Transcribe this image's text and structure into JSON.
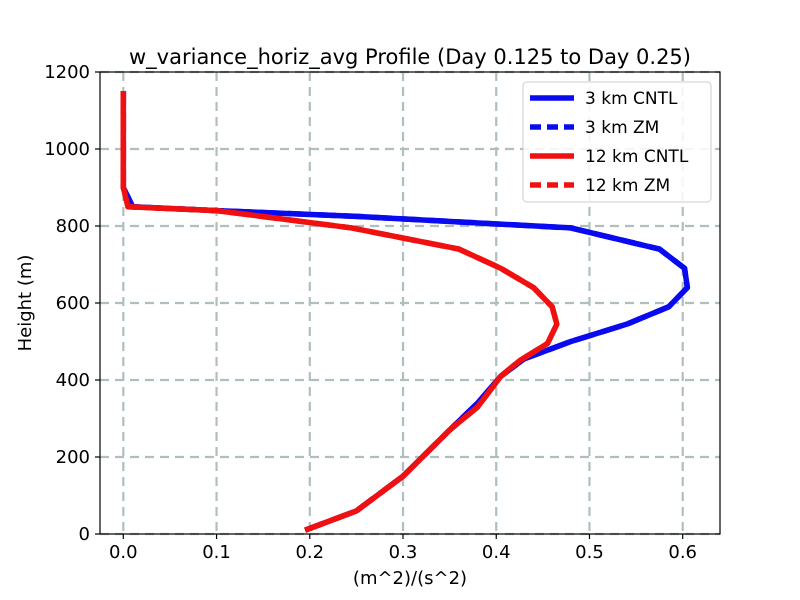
{
  "chart_data": {
    "type": "line",
    "title": "w_variance_horiz_avg Profile (Day 0.125 to Day 0.25)",
    "xlabel": "(m^2)/(s^2)",
    "ylabel": "Height (m)",
    "xlim": [
      -0.025,
      0.64
    ],
    "ylim": [
      0,
      1200
    ],
    "xticks": [
      0.0,
      0.1,
      0.2,
      0.3,
      0.4,
      0.5,
      0.6
    ],
    "xtick_labels": [
      "0.0",
      "0.1",
      "0.2",
      "0.3",
      "0.4",
      "0.5",
      "0.6"
    ],
    "yticks": [
      0,
      200,
      400,
      600,
      800,
      1000,
      1200
    ],
    "ytick_labels": [
      "0",
      "200",
      "400",
      "600",
      "800",
      "1000",
      "1200"
    ],
    "grid": true,
    "legend_position": "top-right",
    "series": [
      {
        "name": "3 km CNTL",
        "color": "#0a0af0",
        "style": "solid",
        "points": [
          [
            0.195,
            10
          ],
          [
            0.25,
            60
          ],
          [
            0.3,
            150
          ],
          [
            0.35,
            270
          ],
          [
            0.38,
            340
          ],
          [
            0.405,
            410
          ],
          [
            0.43,
            455
          ],
          [
            0.48,
            500
          ],
          [
            0.54,
            545
          ],
          [
            0.585,
            590
          ],
          [
            0.605,
            640
          ],
          [
            0.602,
            690
          ],
          [
            0.575,
            740
          ],
          [
            0.48,
            795
          ],
          [
            0.25,
            825
          ],
          [
            0.1,
            840
          ],
          [
            0.01,
            850
          ],
          [
            0.0,
            900
          ],
          [
            0.0,
            1000
          ],
          [
            0.0,
            1150
          ]
        ]
      },
      {
        "name": "3 km ZM",
        "color": "#0a0af0",
        "style": "dashed",
        "points": [
          [
            0.195,
            10
          ],
          [
            0.25,
            60
          ],
          [
            0.3,
            150
          ],
          [
            0.35,
            270
          ],
          [
            0.38,
            340
          ],
          [
            0.405,
            410
          ],
          [
            0.43,
            455
          ],
          [
            0.48,
            500
          ],
          [
            0.54,
            545
          ],
          [
            0.585,
            590
          ],
          [
            0.605,
            640
          ],
          [
            0.602,
            690
          ],
          [
            0.575,
            740
          ],
          [
            0.48,
            795
          ],
          [
            0.25,
            825
          ],
          [
            0.1,
            840
          ],
          [
            0.01,
            850
          ],
          [
            0.0,
            900
          ],
          [
            0.0,
            1000
          ],
          [
            0.0,
            1150
          ]
        ]
      },
      {
        "name": "12 km CNTL",
        "color": "#f01010",
        "style": "solid",
        "points": [
          [
            0.195,
            10
          ],
          [
            0.25,
            60
          ],
          [
            0.3,
            150
          ],
          [
            0.35,
            270
          ],
          [
            0.38,
            330
          ],
          [
            0.405,
            410
          ],
          [
            0.425,
            450
          ],
          [
            0.455,
            495
          ],
          [
            0.465,
            545
          ],
          [
            0.46,
            590
          ],
          [
            0.44,
            640
          ],
          [
            0.405,
            690
          ],
          [
            0.36,
            740
          ],
          [
            0.245,
            795
          ],
          [
            0.1,
            840
          ],
          [
            0.005,
            850
          ],
          [
            0.0,
            900
          ],
          [
            0.0,
            1000
          ],
          [
            0.0,
            1150
          ]
        ]
      },
      {
        "name": "12 km ZM",
        "color": "#f01010",
        "style": "dashed",
        "points": [
          [
            0.195,
            10
          ],
          [
            0.25,
            60
          ],
          [
            0.3,
            150
          ],
          [
            0.35,
            270
          ],
          [
            0.38,
            330
          ],
          [
            0.405,
            410
          ],
          [
            0.425,
            450
          ],
          [
            0.455,
            495
          ],
          [
            0.465,
            545
          ],
          [
            0.46,
            590
          ],
          [
            0.44,
            640
          ],
          [
            0.405,
            690
          ],
          [
            0.36,
            740
          ],
          [
            0.245,
            795
          ],
          [
            0.1,
            840
          ],
          [
            0.005,
            850
          ],
          [
            0.0,
            900
          ],
          [
            0.0,
            1000
          ],
          [
            0.0,
            1150
          ]
        ]
      }
    ]
  }
}
